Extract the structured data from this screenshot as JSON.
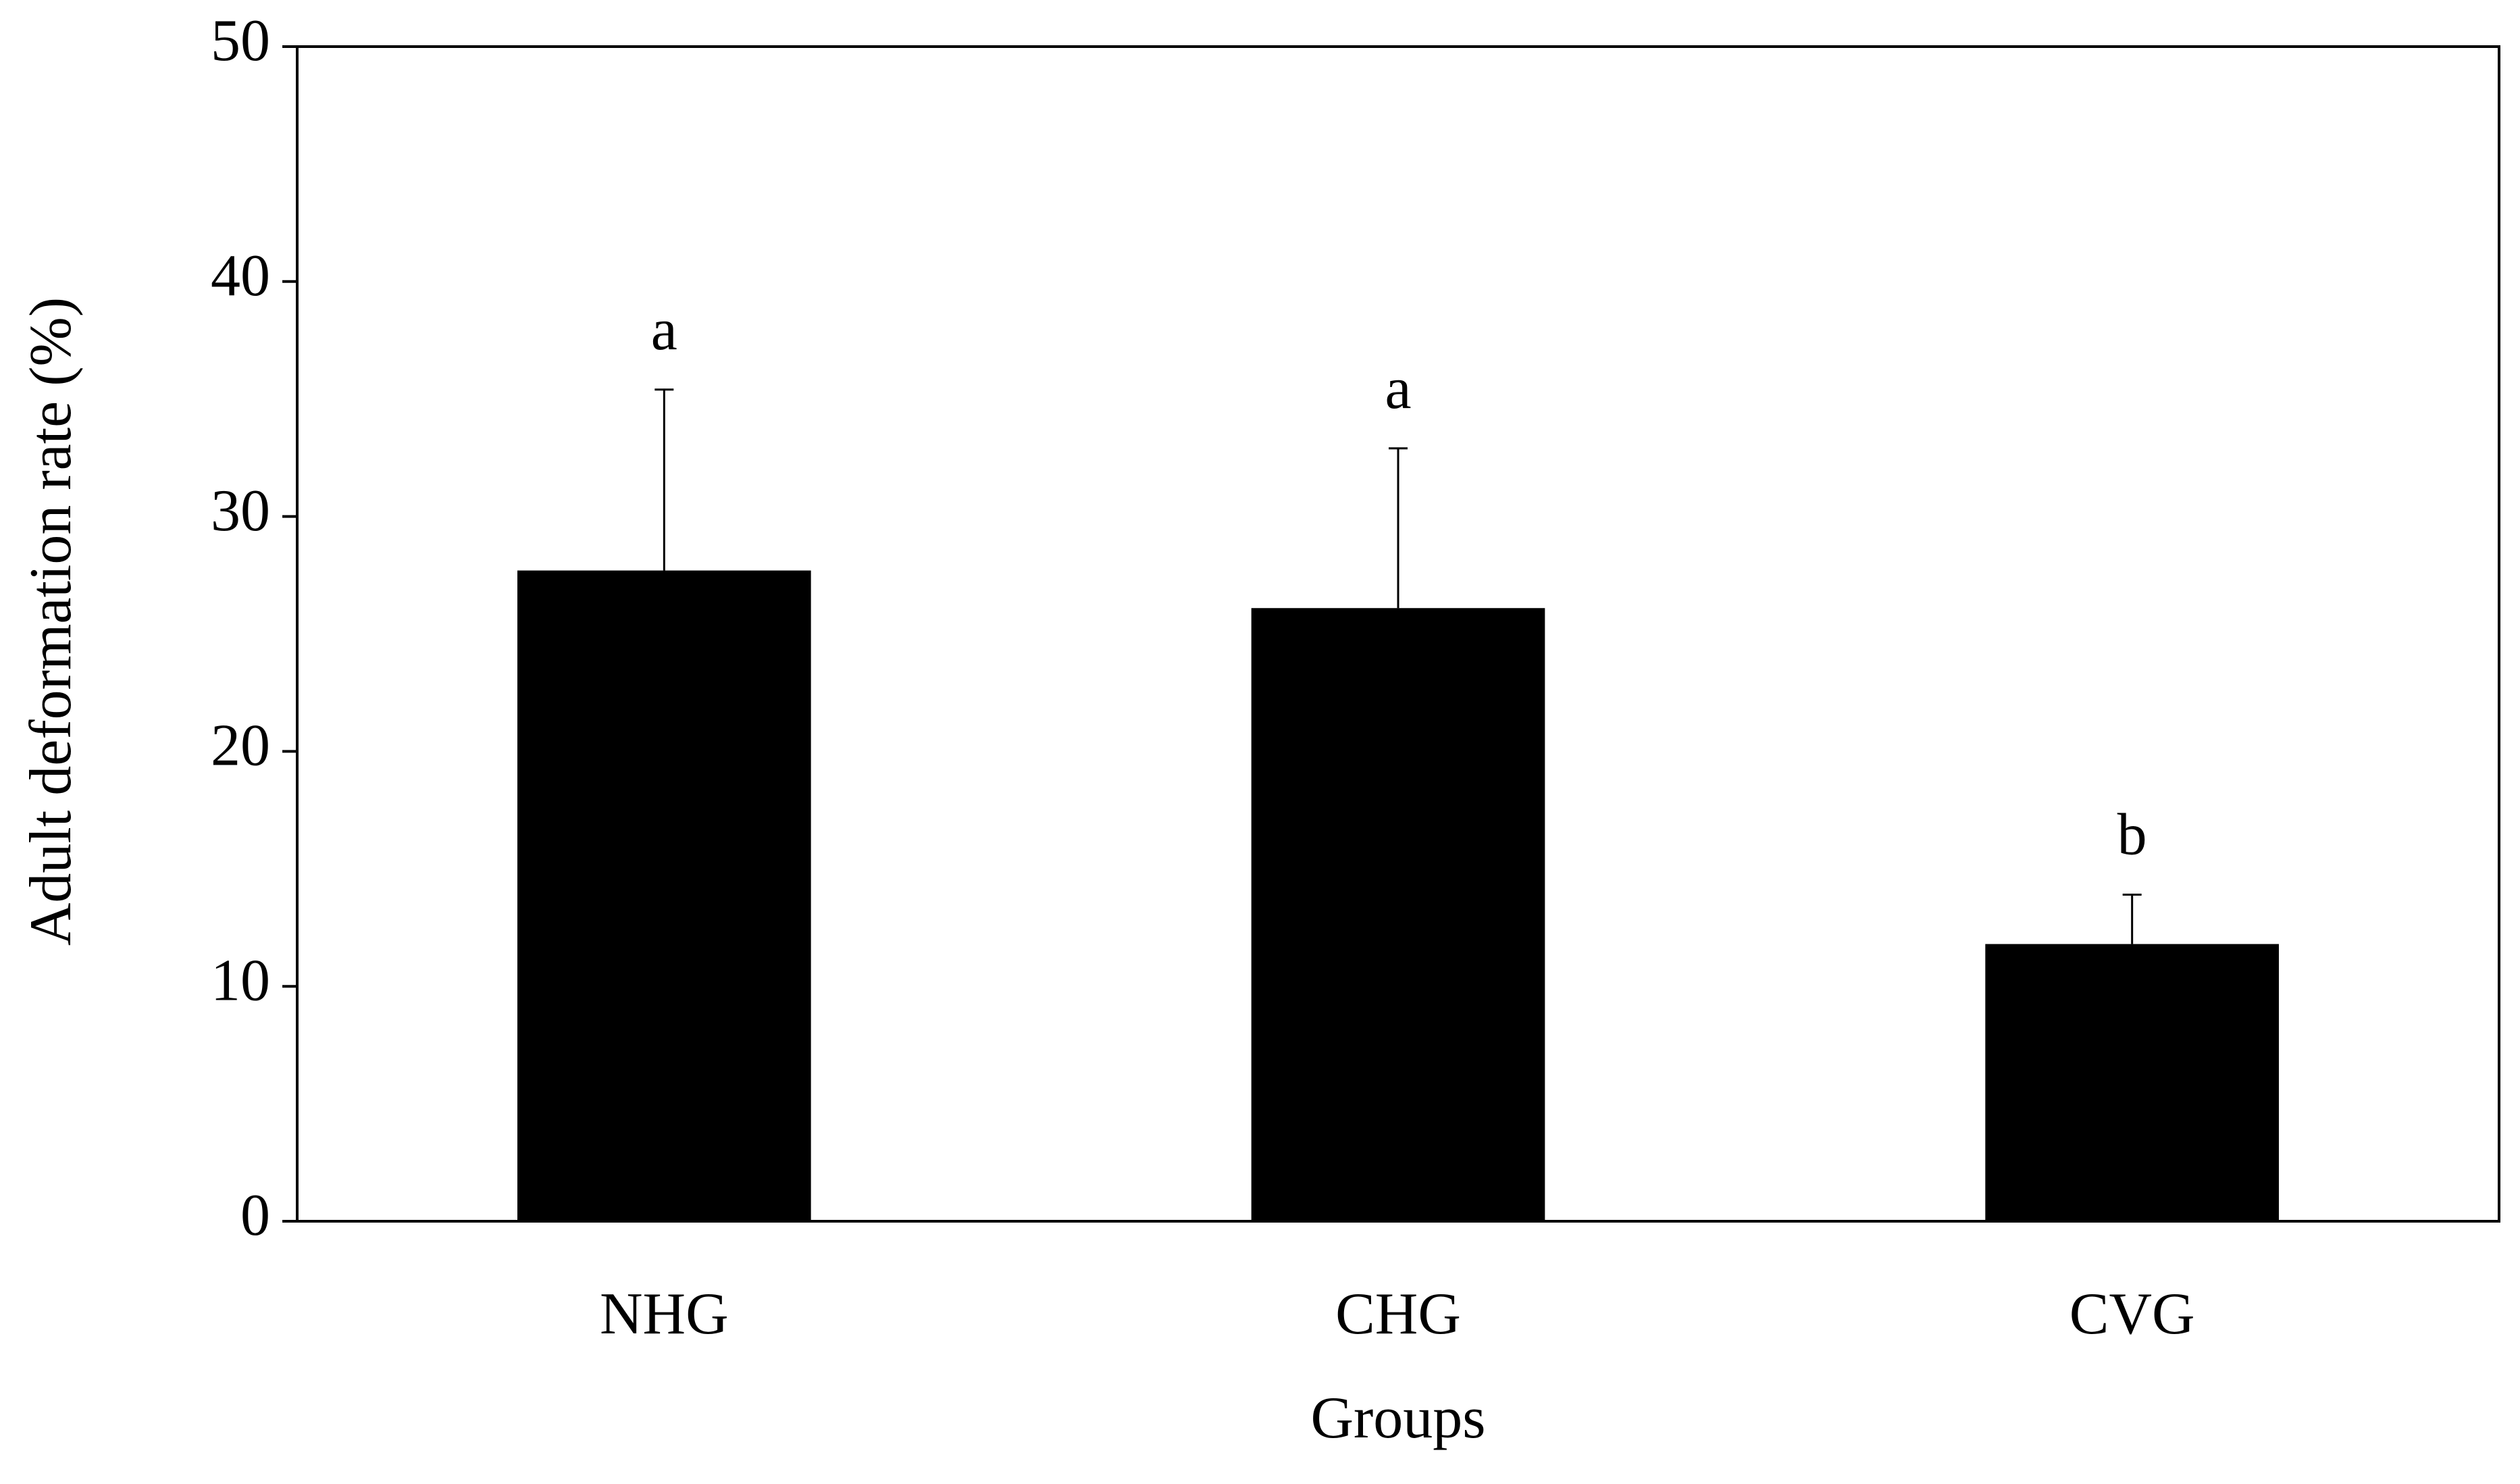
{
  "chart_data": {
    "type": "bar",
    "x_label": "Groups",
    "y_label": "Adult deformation rate (%)",
    "categories": [
      "NHG",
      "CHG",
      "CVG"
    ],
    "values": [
      27.7,
      26.1,
      11.8
    ],
    "errors": [
      7.7,
      6.8,
      2.1
    ],
    "letters": [
      "a",
      "a",
      "b"
    ],
    "color": "#000000",
    "ylim": [
      0,
      50
    ],
    "yticks": [
      0,
      10,
      20,
      30,
      40,
      50
    ],
    "grid": false
  }
}
